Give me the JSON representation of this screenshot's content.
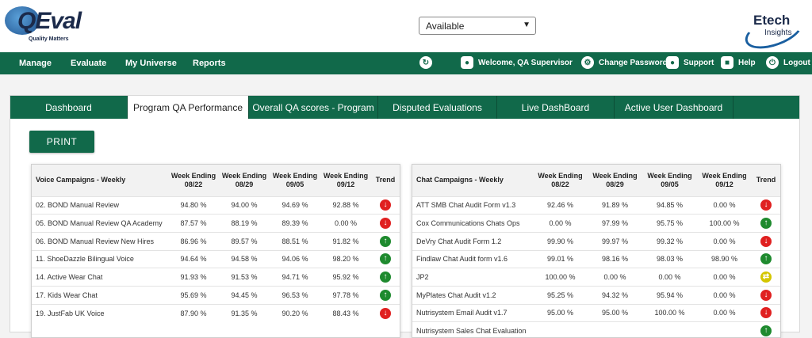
{
  "header": {
    "logo_text": "QEval",
    "logo_tagline": "Quality Matters",
    "status_value": "Available",
    "brand_line1": "Etech",
    "brand_line2": "Insights"
  },
  "nav": {
    "left": [
      "Manage",
      "Evaluate",
      "My Universe",
      "Reports"
    ],
    "welcome": "Welcome, QA Supervisor",
    "change_password": "Change Password",
    "support": "Support",
    "help": "Help",
    "logout": "Logout"
  },
  "tabs": [
    "Dashboard",
    "Program QA Performance",
    "Overall QA scores - Program",
    "Disputed Evaluations",
    "Live DashBoard",
    "Active User Dashboard"
  ],
  "active_tab": "Program QA Performance",
  "print_label": "PRINT",
  "voice": {
    "title": "Voice Campaigns - Weekly",
    "headers": [
      "Week Ending 08/22",
      "Week Ending 08/29",
      "Week Ending 09/05",
      "Week Ending 09/12"
    ],
    "trend_label": "Trend",
    "rows": [
      {
        "name": "02. BOND Manual Review",
        "v": [
          "94.80 %",
          "94.00 %",
          "94.69 %",
          "92.88 %"
        ],
        "trend": "down"
      },
      {
        "name": "05. BOND Manual Review QA Academy",
        "v": [
          "87.57 %",
          "88.19 %",
          "89.39 %",
          "0.00 %"
        ],
        "trend": "down"
      },
      {
        "name": "06. BOND Manual Review New Hires",
        "v": [
          "86.96 %",
          "89.57 %",
          "88.51 %",
          "91.82 %"
        ],
        "trend": "up"
      },
      {
        "name": "11. ShoeDazzle Bilingual Voice",
        "v": [
          "94.64 %",
          "94.58 %",
          "94.06 %",
          "98.20 %"
        ],
        "trend": "up"
      },
      {
        "name": "14. Active Wear Chat",
        "v": [
          "91.93 %",
          "91.53 %",
          "94.71 %",
          "95.92 %"
        ],
        "trend": "up"
      },
      {
        "name": "17. Kids Wear Chat",
        "v": [
          "95.69 %",
          "94.45 %",
          "96.53 %",
          "97.78 %"
        ],
        "trend": "up"
      },
      {
        "name": "19. JustFab UK Voice",
        "v": [
          "87.90 %",
          "91.35 %",
          "90.20 %",
          "88.43 %"
        ],
        "trend": "down"
      }
    ]
  },
  "chat": {
    "title": "Chat Campaigns - Weekly",
    "headers": [
      "Week Ending 08/22",
      "Week Ending 08/29",
      "Week Ending 09/05",
      "Week Ending 09/12"
    ],
    "trend_label": "Trend",
    "rows": [
      {
        "name": "ATT SMB Chat Audit Form v1.3",
        "v": [
          "92.46 %",
          "91.89 %",
          "94.85 %",
          "0.00 %"
        ],
        "trend": "down"
      },
      {
        "name": "Cox Communications Chats Ops",
        "v": [
          "0.00 %",
          "97.99 %",
          "95.75 %",
          "100.00 %"
        ],
        "trend": "up"
      },
      {
        "name": "DeVry Chat Audit Form 1.2",
        "v": [
          "99.90 %",
          "99.97 %",
          "99.32 %",
          "0.00 %"
        ],
        "trend": "down"
      },
      {
        "name": "Findlaw Chat Audit form v1.6",
        "v": [
          "99.01 %",
          "98.16 %",
          "98.03 %",
          "98.90 %"
        ],
        "trend": "up"
      },
      {
        "name": "JP2",
        "v": [
          "100.00 %",
          "0.00 %",
          "0.00 %",
          "0.00 %"
        ],
        "trend": "flat"
      },
      {
        "name": "MyPlates Chat Audit v1.2",
        "v": [
          "95.25 %",
          "94.32 %",
          "95.94 %",
          "0.00 %"
        ],
        "trend": "down"
      },
      {
        "name": "Nutrisystem Email Audit v1.7",
        "v": [
          "95.00 %",
          "95.00 %",
          "100.00 %",
          "0.00 %"
        ],
        "trend": "down"
      },
      {
        "name": "Nutrisystem Sales Chat Evaluation",
        "v": [
          "",
          "",
          "",
          ""
        ],
        "trend": "up"
      }
    ]
  }
}
